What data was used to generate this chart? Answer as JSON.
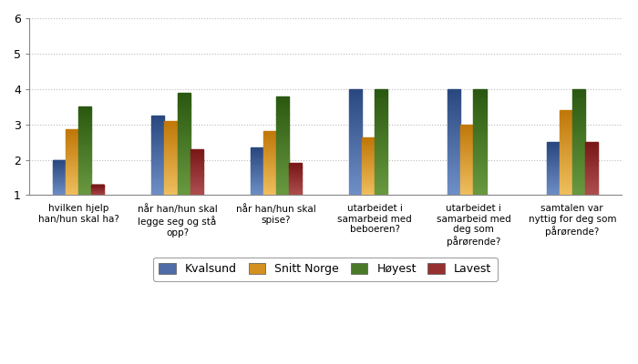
{
  "categories": [
    "hvilken hjelp\nhan/hun skal ha?",
    "når han/hun skal\nlegge seg og stå\nopp?",
    "når han/hun skal\nspise?",
    "utarbeidet i\nsamarbeid med\nbeboeren?",
    "utarbeidet i\nsamarbeid med\ndeg som\npårørende?",
    "samtalen var\nnyttig for deg som\npårørende?"
  ],
  "series": {
    "Kvalsund": [
      2.0,
      3.25,
      2.35,
      4.0,
      4.0,
      2.5
    ],
    "Snitt Norge": [
      2.85,
      3.1,
      2.82,
      2.62,
      3.0,
      3.4
    ],
    "Høyest": [
      3.5,
      3.88,
      3.8,
      4.0,
      4.0,
      4.0
    ],
    "Lavest": [
      1.3,
      2.3,
      1.9,
      null,
      null,
      2.5
    ]
  },
  "colors": {
    "Kvalsund": [
      "#7090C8",
      "#2A4880"
    ],
    "Snitt Norge": [
      "#F0C060",
      "#C07808"
    ],
    "Høyest": [
      "#6A9A40",
      "#2A5810"
    ],
    "Lavest": [
      "#B05050",
      "#7A1818"
    ]
  },
  "legend_colors": {
    "Kvalsund": "#4F6CA8",
    "Snitt Norge": "#D49020",
    "Høyest": "#4A7A28",
    "Lavest": "#963030"
  },
  "ylim": [
    1,
    6
  ],
  "yticks": [
    1,
    2,
    3,
    4,
    5,
    6
  ],
  "bar_width": 0.13,
  "group_width": 0.7,
  "figsize": [
    7.0,
    4.0
  ],
  "dpi": 100,
  "grid_color": "#bbbbbb",
  "background_color": "#ffffff",
  "legend_labels": [
    "Kvalsund",
    "Snitt Norge",
    "Høyest",
    "Lavest"
  ]
}
